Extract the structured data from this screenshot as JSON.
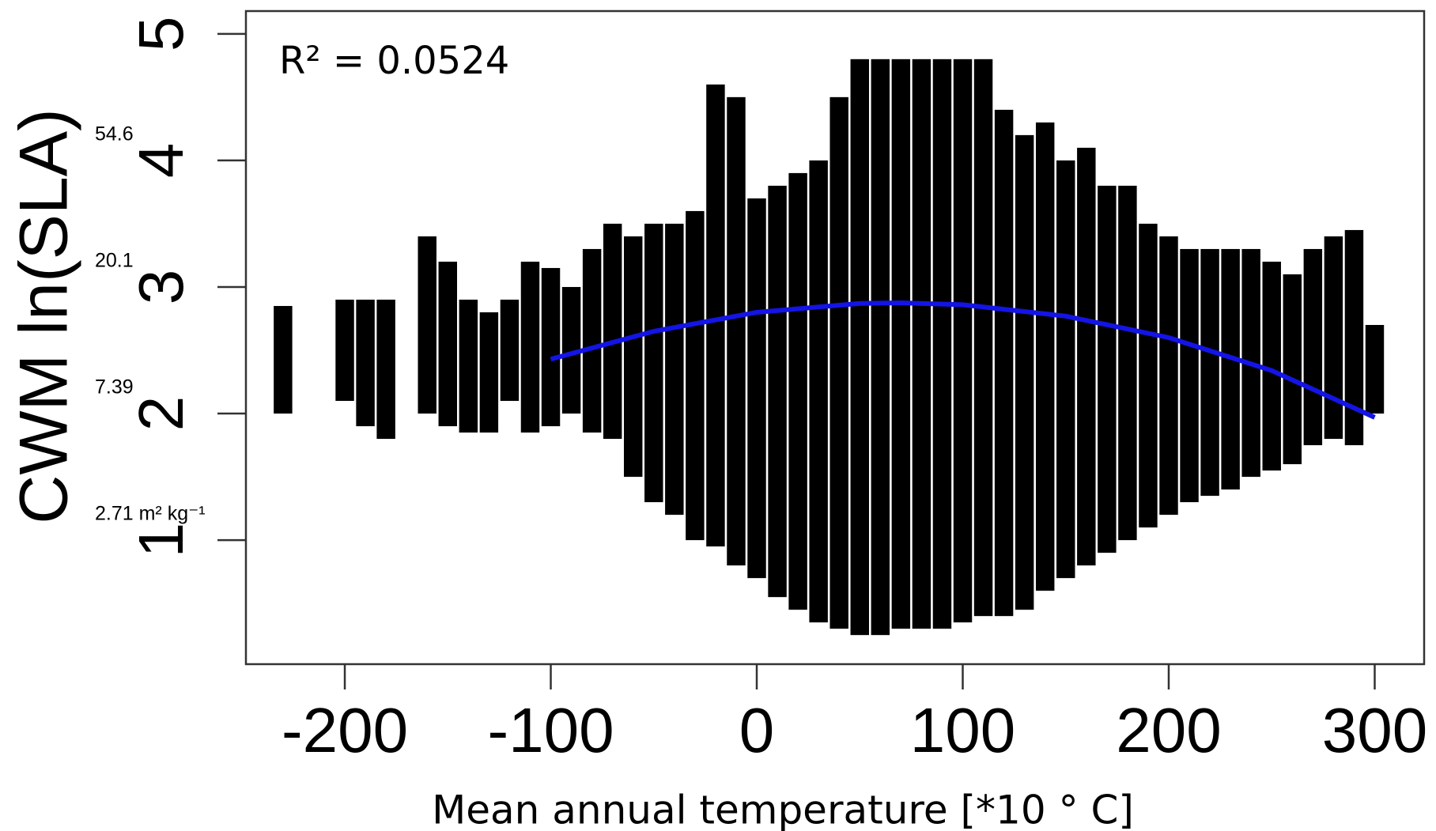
{
  "chart_data": {
    "type": "scatter",
    "annotation": "R² = 0.0524",
    "x_label": "Mean annual temperature [*10 ° C]",
    "y_label": "CWM ln(SLA)",
    "xlim": [
      -248,
      324
    ],
    "ylim": [
      0.02,
      5.18
    ],
    "xticks": [
      -200,
      -100,
      0,
      100,
      200,
      300
    ],
    "yticks": [
      1,
      2,
      3,
      4,
      5
    ],
    "secondary_labels": [
      {
        "value": 4,
        "label": "54.6"
      },
      {
        "value": 3,
        "label": "20.1"
      },
      {
        "value": 2,
        "label": "7.39"
      },
      {
        "value": 1,
        "label": "2.71 m² kg⁻¹"
      }
    ],
    "points": {
      "color": "#000000",
      "x": [
        -230,
        -200,
        -190,
        -180,
        -160,
        -150,
        -140,
        -130,
        -120,
        -110,
        -100,
        -90,
        -80,
        -70,
        -60,
        -50,
        -40,
        -30,
        -20,
        -10,
        0,
        10,
        20,
        30,
        40,
        50,
        60,
        70,
        80,
        90,
        100,
        110,
        120,
        130,
        140,
        150,
        160,
        170,
        180,
        190,
        200,
        210,
        220,
        230,
        240,
        250,
        260,
        270,
        280,
        290,
        300
      ],
      "low": [
        2.0,
        2.1,
        1.9,
        1.8,
        2.0,
        1.9,
        1.85,
        1.85,
        2.1,
        1.85,
        1.9,
        2.0,
        1.85,
        1.8,
        1.5,
        1.3,
        1.2,
        1.0,
        0.95,
        0.8,
        0.7,
        0.55,
        0.45,
        0.35,
        0.3,
        0.25,
        0.25,
        0.3,
        0.3,
        0.3,
        0.35,
        0.4,
        0.4,
        0.45,
        0.6,
        0.7,
        0.8,
        0.9,
        1.0,
        1.1,
        1.2,
        1.3,
        1.35,
        1.4,
        1.5,
        1.55,
        1.6,
        1.75,
        1.8,
        1.75,
        2.0
      ],
      "high": [
        2.85,
        2.9,
        2.9,
        2.9,
        3.4,
        3.2,
        2.9,
        2.8,
        2.9,
        3.2,
        3.15,
        3.0,
        3.3,
        3.5,
        3.4,
        3.5,
        3.5,
        3.6,
        4.6,
        4.5,
        3.7,
        3.8,
        3.9,
        4.0,
        4.5,
        4.8,
        4.8,
        4.8,
        4.8,
        4.8,
        4.8,
        4.8,
        4.4,
        4.2,
        4.3,
        4.0,
        4.1,
        3.8,
        3.8,
        3.5,
        3.4,
        3.3,
        3.3,
        3.3,
        3.3,
        3.2,
        3.1,
        3.3,
        3.4,
        3.45,
        2.7
      ]
    },
    "fit": {
      "color": "#1414e6",
      "x": [
        -100,
        -50,
        0,
        50,
        70,
        100,
        150,
        200,
        250,
        300
      ],
      "values": [
        2.43,
        2.65,
        2.8,
        2.87,
        2.875,
        2.86,
        2.77,
        2.6,
        2.34,
        1.97
      ]
    }
  }
}
